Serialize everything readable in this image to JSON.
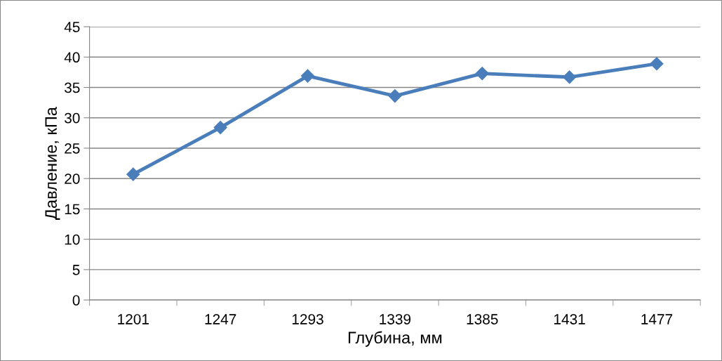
{
  "chart_data": {
    "type": "line",
    "xlabel": "Глубина, мм",
    "ylabel": "Давление, кПа",
    "categories": [
      "1201",
      "1247",
      "1293",
      "1339",
      "1385",
      "1431",
      "1477"
    ],
    "series": [
      {
        "color": "#4a7ebb",
        "values": [
          20.7,
          28.4,
          36.9,
          33.6,
          37.3,
          36.7,
          38.9
        ]
      }
    ],
    "ylim": [
      0,
      45
    ],
    "yticks": [
      0,
      5,
      10,
      15,
      20,
      25,
      30,
      35,
      40,
      45
    ],
    "grid": "y",
    "legend": false,
    "marker": "diamond",
    "line_style": "solid"
  }
}
